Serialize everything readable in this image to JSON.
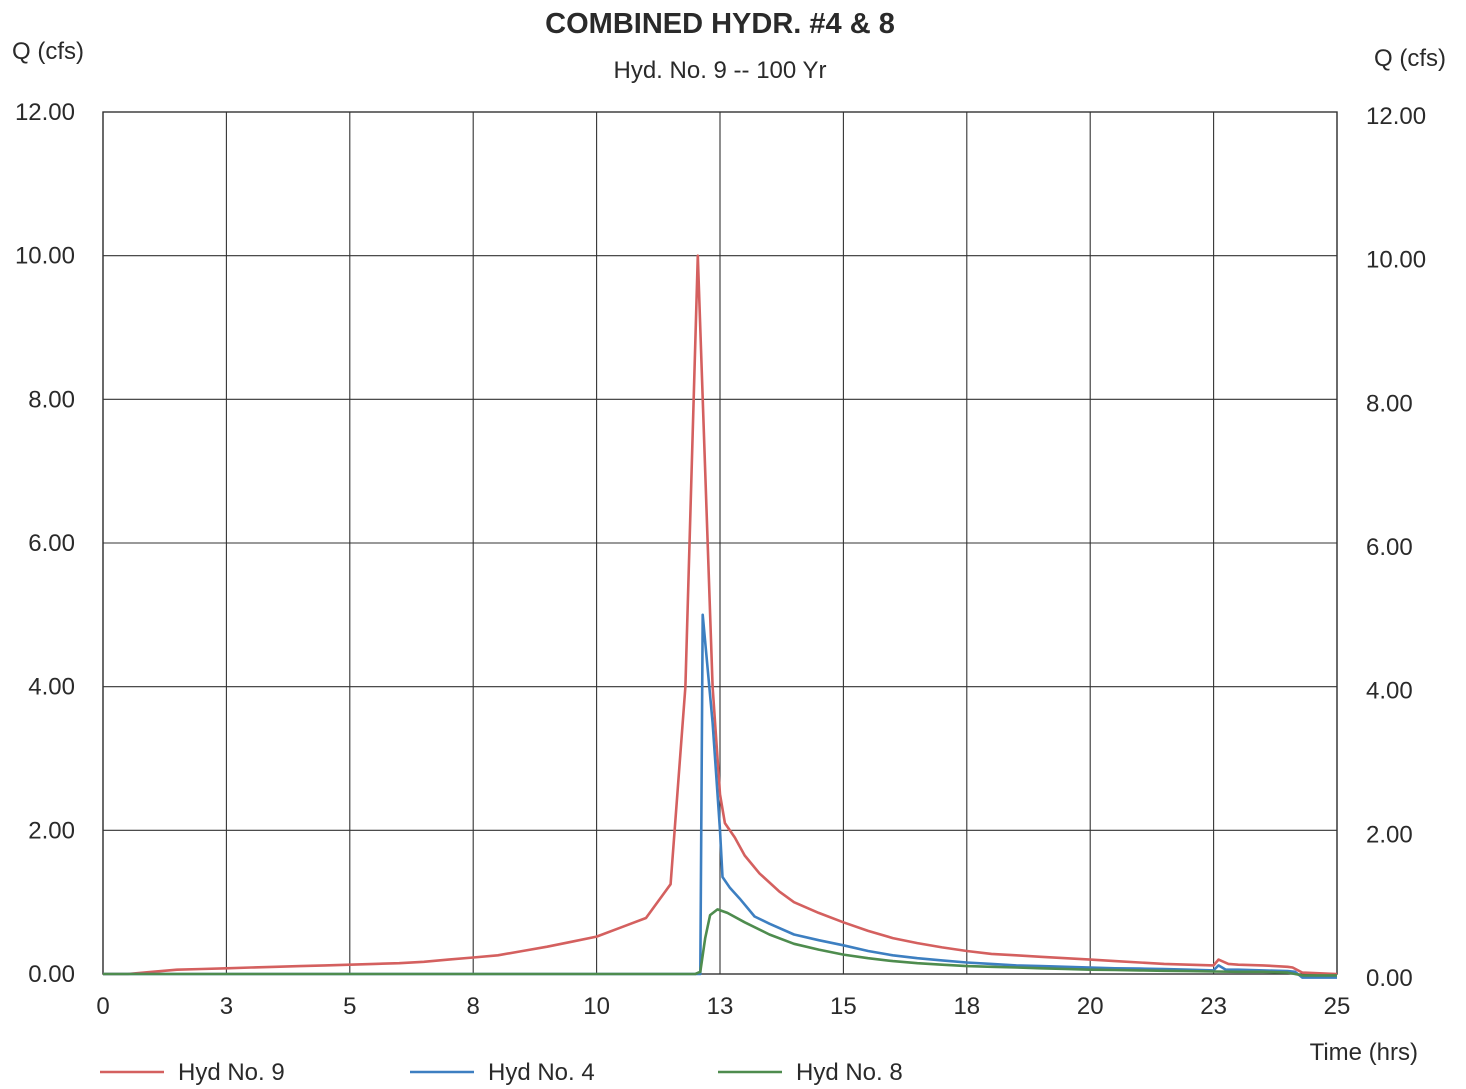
{
  "chart_data": {
    "type": "line",
    "title": "COMBINED HYDR. #4 & 8",
    "subtitle": "Hyd. No. 9 -- 100 Yr",
    "ylabel_left": "Q (cfs)",
    "ylabel_right": "Q (cfs)",
    "xlabel": "Time (hrs)",
    "xlim": [
      0,
      25
    ],
    "ylim": [
      0,
      12
    ],
    "grid": true,
    "legend_position": "bottom",
    "x_ticks": [
      {
        "value": 0,
        "label": "0"
      },
      {
        "value": 2.5,
        "label": "3"
      },
      {
        "value": 5,
        "label": "5"
      },
      {
        "value": 7.5,
        "label": "8"
      },
      {
        "value": 10,
        "label": "10"
      },
      {
        "value": 12.5,
        "label": "13"
      },
      {
        "value": 15,
        "label": "15"
      },
      {
        "value": 17.5,
        "label": "18"
      },
      {
        "value": 20,
        "label": "20"
      },
      {
        "value": 22.5,
        "label": "23"
      },
      {
        "value": 25,
        "label": "25"
      }
    ],
    "y_ticks": [
      {
        "value": 0,
        "label": "0.00"
      },
      {
        "value": 2,
        "label": "2.00"
      },
      {
        "value": 4,
        "label": "4.00"
      },
      {
        "value": 6,
        "label": "6.00"
      },
      {
        "value": 8,
        "label": "8.00"
      },
      {
        "value": 10,
        "label": "10.00"
      },
      {
        "value": 12,
        "label": "12.00"
      }
    ],
    "series": [
      {
        "name": "Hyd No. 9",
        "color": "#d4605f",
        "points": [
          [
            0,
            0
          ],
          [
            0.5,
            0
          ],
          [
            1,
            0.03
          ],
          [
            1.5,
            0.06
          ],
          [
            2,
            0.07
          ],
          [
            2.5,
            0.08
          ],
          [
            3,
            0.09
          ],
          [
            3.5,
            0.1
          ],
          [
            4,
            0.11
          ],
          [
            4.5,
            0.12
          ],
          [
            5,
            0.13
          ],
          [
            5.5,
            0.14
          ],
          [
            6,
            0.15
          ],
          [
            6.5,
            0.17
          ],
          [
            7,
            0.2
          ],
          [
            7.5,
            0.23
          ],
          [
            8,
            0.26
          ],
          [
            8.5,
            0.32
          ],
          [
            9,
            0.38
          ],
          [
            9.5,
            0.45
          ],
          [
            10,
            0.52
          ],
          [
            10.5,
            0.65
          ],
          [
            11,
            0.78
          ],
          [
            11.5,
            1.25
          ],
          [
            11.8,
            4
          ],
          [
            12.05,
            10
          ],
          [
            12.2,
            7
          ],
          [
            12.35,
            4
          ],
          [
            12.5,
            2.5
          ],
          [
            12.6,
            2.1
          ],
          [
            12.8,
            1.9
          ],
          [
            13,
            1.65
          ],
          [
            13.3,
            1.4
          ],
          [
            13.7,
            1.15
          ],
          [
            14,
            1.0
          ],
          [
            14.5,
            0.85
          ],
          [
            15,
            0.72
          ],
          [
            15.5,
            0.6
          ],
          [
            16,
            0.5
          ],
          [
            16.5,
            0.43
          ],
          [
            17,
            0.37
          ],
          [
            17.5,
            0.32
          ],
          [
            18,
            0.28
          ],
          [
            18.5,
            0.26
          ],
          [
            19,
            0.24
          ],
          [
            19.5,
            0.22
          ],
          [
            20,
            0.2
          ],
          [
            20.5,
            0.18
          ],
          [
            21,
            0.16
          ],
          [
            21.5,
            0.14
          ],
          [
            22,
            0.13
          ],
          [
            22.5,
            0.12
          ],
          [
            22.6,
            0.2
          ],
          [
            22.8,
            0.14
          ],
          [
            23,
            0.13
          ],
          [
            23.5,
            0.12
          ],
          [
            24,
            0.1
          ],
          [
            24.1,
            0.09
          ],
          [
            24.3,
            0.02
          ],
          [
            25,
            0
          ]
        ]
      },
      {
        "name": "Hyd No. 4",
        "color": "#3d7fc1",
        "points": [
          [
            0,
            0
          ],
          [
            12.1,
            0
          ],
          [
            12.15,
            5
          ],
          [
            12.35,
            3.5
          ],
          [
            12.5,
            2
          ],
          [
            12.55,
            1.35
          ],
          [
            12.7,
            1.2
          ],
          [
            12.9,
            1.05
          ],
          [
            13.2,
            0.8
          ],
          [
            13.5,
            0.7
          ],
          [
            14,
            0.55
          ],
          [
            14.5,
            0.47
          ],
          [
            15,
            0.4
          ],
          [
            15.5,
            0.32
          ],
          [
            16,
            0.26
          ],
          [
            16.5,
            0.22
          ],
          [
            17,
            0.19
          ],
          [
            17.5,
            0.16
          ],
          [
            18,
            0.14
          ],
          [
            18.5,
            0.12
          ],
          [
            19,
            0.11
          ],
          [
            19.5,
            0.1
          ],
          [
            20,
            0.09
          ],
          [
            20.5,
            0.08
          ],
          [
            21,
            0.075
          ],
          [
            21.5,
            0.07
          ],
          [
            22,
            0.06
          ],
          [
            22.5,
            0.05
          ],
          [
            22.6,
            0.12
          ],
          [
            22.75,
            0.06
          ],
          [
            23,
            0.06
          ],
          [
            23.5,
            0.05
          ],
          [
            24,
            0.04
          ],
          [
            24.15,
            0.03
          ],
          [
            24.3,
            -0.05
          ],
          [
            25,
            -0.05
          ]
        ]
      },
      {
        "name": "Hyd No. 8",
        "color": "#4e8c4e",
        "points": [
          [
            0,
            0
          ],
          [
            12,
            0
          ],
          [
            12.1,
            0.03
          ],
          [
            12.2,
            0.5
          ],
          [
            12.3,
            0.82
          ],
          [
            12.45,
            0.9
          ],
          [
            12.65,
            0.85
          ],
          [
            13,
            0.72
          ],
          [
            13.5,
            0.55
          ],
          [
            14,
            0.42
          ],
          [
            14.5,
            0.34
          ],
          [
            15,
            0.27
          ],
          [
            15.5,
            0.22
          ],
          [
            16,
            0.18
          ],
          [
            16.5,
            0.15
          ],
          [
            17,
            0.13
          ],
          [
            17.5,
            0.11
          ],
          [
            18,
            0.1
          ],
          [
            18.5,
            0.09
          ],
          [
            19,
            0.08
          ],
          [
            19.5,
            0.07
          ],
          [
            20,
            0.06
          ],
          [
            20.5,
            0.055
          ],
          [
            21,
            0.05
          ],
          [
            21.5,
            0.045
          ],
          [
            22,
            0.04
          ],
          [
            22.5,
            0.035
          ],
          [
            23,
            0.03
          ],
          [
            23.5,
            0.03
          ],
          [
            24,
            0.02
          ],
          [
            24.3,
            -0.02
          ],
          [
            25,
            -0.02
          ]
        ]
      }
    ]
  }
}
